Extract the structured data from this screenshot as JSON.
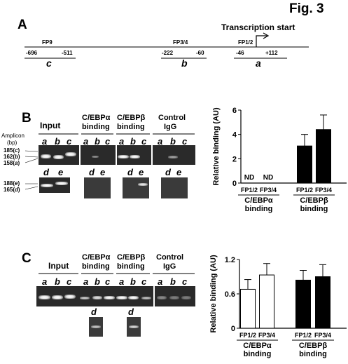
{
  "figure_label": "Fig. 3",
  "panelA": {
    "letter": "A",
    "tss_label": "Transcription start",
    "regions": [
      {
        "name": "FP9",
        "start": "-696",
        "end": "-511",
        "amplicon": "c"
      },
      {
        "name": "FP3/4",
        "start": "-222",
        "end": "-60",
        "amplicon": "b"
      },
      {
        "name": "FP1/2",
        "start": "-46",
        "end": "+112",
        "amplicon": "a"
      }
    ]
  },
  "panelB": {
    "letter": "B",
    "groups": [
      {
        "line1": "Input",
        "line2": ""
      },
      {
        "line1": "C/EBPα",
        "line2": "binding"
      },
      {
        "line1": "C/EBPβ",
        "line2": "binding"
      },
      {
        "line1": "Control",
        "line2": "IgG"
      }
    ],
    "lane_letters": [
      "a",
      "b",
      "c"
    ],
    "lower_letters": [
      "d",
      "e"
    ],
    "amplicon_title": "Amplicon",
    "amplicon_unit": "(bp)",
    "sizes_upper": [
      {
        "num": "185",
        "id": "c"
      },
      {
        "num": "162",
        "id": "b"
      },
      {
        "num": "158",
        "id": "a"
      }
    ],
    "sizes_lower": [
      {
        "num": "188",
        "id": "e"
      },
      {
        "num": "165",
        "id": "d"
      }
    ]
  },
  "panelC": {
    "letter": "C",
    "groups": [
      {
        "line1": "Input",
        "line2": ""
      },
      {
        "line1": "C/EBPα",
        "line2": "binding"
      },
      {
        "line1": "C/EBPβ",
        "line2": "binding"
      },
      {
        "line1": "Control",
        "line2": "IgG"
      }
    ],
    "lane_letters": [
      "a",
      "b",
      "c"
    ],
    "lower_letter": "d"
  },
  "chart_data": [
    {
      "type": "bar",
      "ylabel": "Relative binding (AU)",
      "ylim": [
        0,
        6
      ],
      "yticks": [
        "0",
        "2",
        "4",
        "6"
      ],
      "categories": [
        "FP1/2",
        "FP3/4",
        "FP1/2",
        "FP3/4"
      ],
      "groups": [
        {
          "line1": "C/EBPα",
          "line2": "binding"
        },
        {
          "line1": "C/EBPβ",
          "line2": "binding"
        }
      ],
      "values": [
        0,
        0,
        3.05,
        4.4
      ],
      "errors": [
        0,
        0,
        0.95,
        1.2
      ],
      "bar_colors": [
        "#ffffff",
        "#ffffff",
        "#000000",
        "#000000"
      ],
      "annotations": [
        "ND",
        "ND",
        "",
        ""
      ]
    },
    {
      "type": "bar",
      "ylabel": "Relative binding (AU)",
      "ylim": [
        0,
        1.2
      ],
      "yticks": [
        "0",
        "0.6",
        "1.2"
      ],
      "categories": [
        "FP1/2",
        "FP3/4",
        "FP1/2",
        "FP3/4"
      ],
      "groups": [
        {
          "line1": "C/EBPα",
          "line2": "binding"
        },
        {
          "line1": "C/EBPβ",
          "line2": "binding"
        }
      ],
      "values": [
        0.68,
        0.93,
        0.84,
        0.9
      ],
      "errors": [
        0.17,
        0.2,
        0.17,
        0.21
      ],
      "bar_colors": [
        "#ffffff",
        "#ffffff",
        "#000000",
        "#000000"
      ],
      "annotations": [
        "",
        "",
        "",
        ""
      ]
    }
  ]
}
